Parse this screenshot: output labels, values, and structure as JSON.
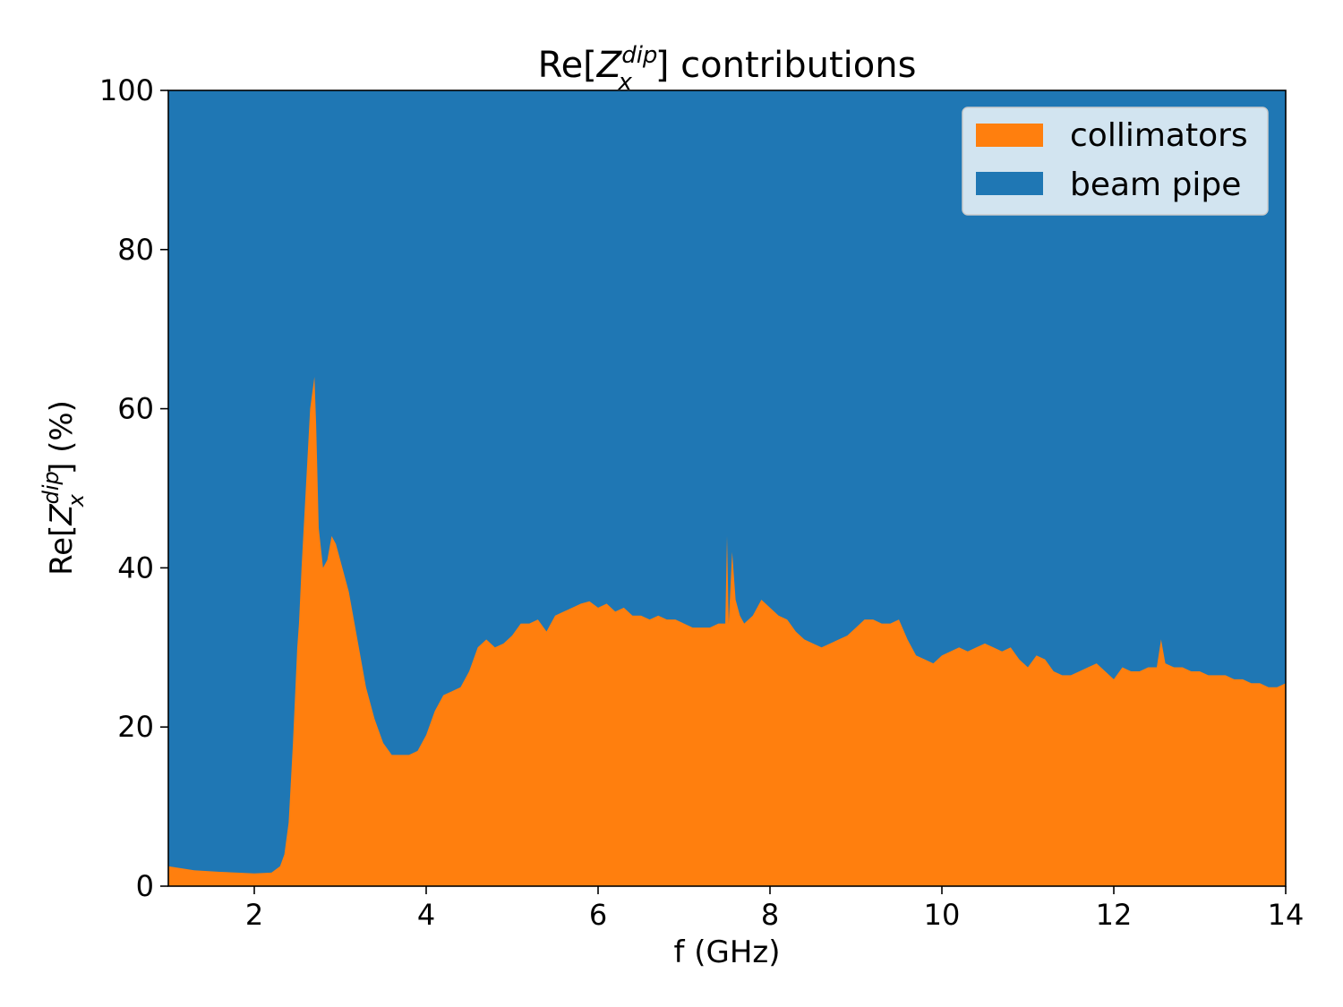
{
  "chart_data": {
    "type": "area",
    "stacked": true,
    "title_prefix": "Re[",
    "title_sym": "Z",
    "title_sub": "x",
    "title_sup": "dip",
    "title_suffix": "] contributions",
    "xlabel": "f (GHz)",
    "ylabel_prefix": "Re[",
    "ylabel_sym": "Z",
    "ylabel_sub": "x",
    "ylabel_sup": "dip",
    "ylabel_suffix": "] (%)",
    "xlim": [
      1,
      14
    ],
    "ylim": [
      0,
      100
    ],
    "xticks": [
      2,
      4,
      6,
      8,
      10,
      12,
      14
    ],
    "yticks": [
      0,
      20,
      40,
      60,
      80,
      100
    ],
    "legend_position": "top-right",
    "series": [
      {
        "name": "collimators",
        "color": "#ff7f0e",
        "x": [
          1.0,
          1.3,
          1.6,
          2.0,
          2.2,
          2.3,
          2.35,
          2.4,
          2.45,
          2.5,
          2.52,
          2.55,
          2.6,
          2.65,
          2.7,
          2.72,
          2.75,
          2.8,
          2.85,
          2.9,
          2.95,
          3.0,
          3.1,
          3.2,
          3.3,
          3.4,
          3.5,
          3.6,
          3.7,
          3.8,
          3.9,
          4.0,
          4.1,
          4.2,
          4.3,
          4.4,
          4.5,
          4.6,
          4.7,
          4.8,
          4.9,
          5.0,
          5.1,
          5.2,
          5.3,
          5.4,
          5.5,
          5.6,
          5.7,
          5.8,
          5.9,
          6.0,
          6.1,
          6.2,
          6.3,
          6.4,
          6.5,
          6.6,
          6.7,
          6.8,
          6.9,
          7.0,
          7.1,
          7.2,
          7.3,
          7.4,
          7.48,
          7.5,
          7.52,
          7.56,
          7.6,
          7.65,
          7.7,
          7.8,
          7.9,
          7.95,
          8.0,
          8.1,
          8.2,
          8.3,
          8.4,
          8.5,
          8.6,
          8.7,
          8.8,
          8.9,
          9.0,
          9.1,
          9.2,
          9.3,
          9.4,
          9.5,
          9.6,
          9.7,
          9.8,
          9.9,
          10.0,
          10.1,
          10.2,
          10.3,
          10.4,
          10.5,
          10.6,
          10.7,
          10.8,
          10.9,
          11.0,
          11.1,
          11.2,
          11.3,
          11.4,
          11.5,
          11.6,
          11.7,
          11.8,
          11.9,
          12.0,
          12.1,
          12.2,
          12.3,
          12.4,
          12.5,
          12.55,
          12.6,
          12.7,
          12.8,
          12.9,
          13.0,
          13.1,
          13.2,
          13.3,
          13.4,
          13.5,
          13.6,
          13.7,
          13.8,
          13.9,
          14.0
        ],
        "values": [
          2.5,
          2.0,
          1.8,
          1.6,
          1.7,
          2.5,
          4.0,
          8.0,
          18.0,
          30.0,
          33.0,
          40.0,
          50.0,
          60.0,
          64.0,
          58.0,
          45.0,
          40.0,
          41.0,
          44.0,
          43.0,
          41.0,
          37.0,
          31.0,
          25.0,
          21.0,
          18.0,
          16.5,
          16.5,
          16.5,
          17.0,
          19.0,
          22.0,
          24.0,
          24.5,
          25.0,
          27.0,
          30.0,
          31.0,
          30.0,
          30.5,
          31.5,
          33.0,
          33.0,
          33.5,
          32.0,
          34.0,
          34.5,
          35.0,
          35.5,
          35.8,
          35.0,
          35.5,
          34.5,
          35.0,
          34.0,
          34.0,
          33.5,
          34.0,
          33.5,
          33.5,
          33.0,
          32.5,
          32.5,
          32.5,
          33.0,
          33.0,
          44.0,
          33.0,
          42.0,
          36.0,
          34.0,
          33.0,
          34.0,
          36.0,
          35.5,
          35.0,
          34.0,
          33.5,
          32.0,
          31.0,
          30.5,
          30.0,
          30.5,
          31.0,
          31.5,
          32.5,
          33.5,
          33.5,
          33.0,
          33.0,
          33.5,
          31.0,
          29.0,
          28.5,
          28.0,
          29.0,
          29.5,
          30.0,
          29.5,
          30.0,
          30.5,
          30.0,
          29.5,
          30.0,
          28.5,
          27.5,
          29.0,
          28.5,
          27.0,
          26.5,
          26.5,
          27.0,
          27.5,
          28.0,
          27.0,
          26.0,
          27.5,
          27.0,
          27.0,
          27.5,
          27.5,
          31.0,
          28.0,
          27.5,
          27.5,
          27.0,
          27.0,
          26.5,
          26.5,
          26.5,
          26.0,
          26.0,
          25.5,
          25.5,
          25.0,
          25.0,
          25.5
        ]
      },
      {
        "name": "beam pipe",
        "color": "#1f77b4",
        "stack_total": 100
      }
    ]
  }
}
